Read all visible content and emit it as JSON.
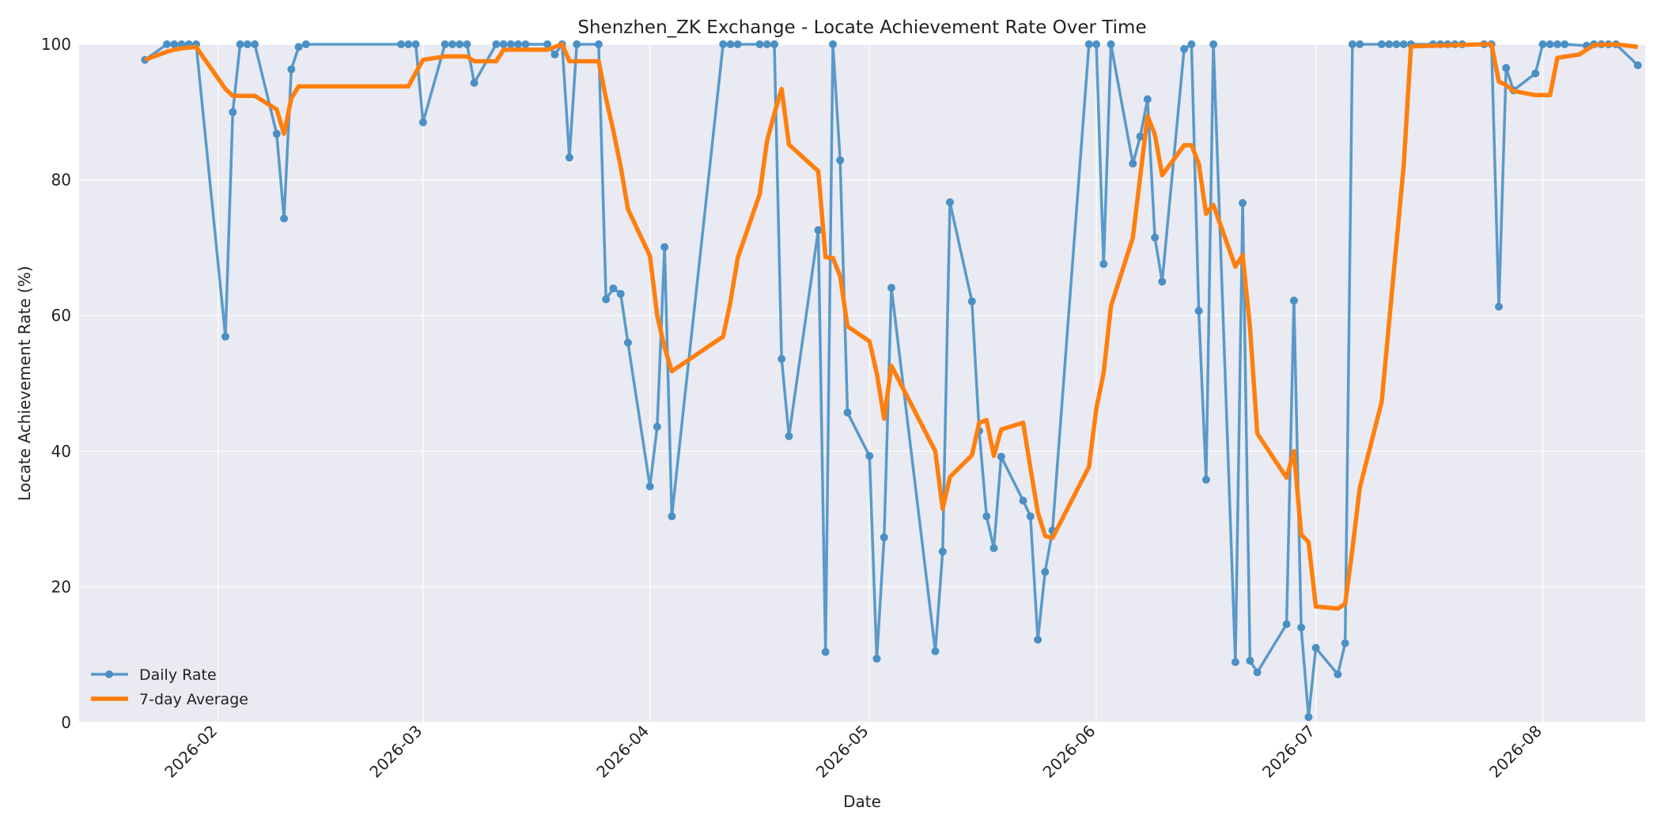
{
  "chart_data": {
    "type": "line",
    "title": "Shenzhen_ZK Exchange - Locate Achievement Rate Over Time",
    "xlabel": "Date",
    "ylabel": "Locate Achievement Rate (%)",
    "xlim": [
      "2026-01-13",
      "2026-08-15"
    ],
    "ylim": [
      0,
      100
    ],
    "x_ticks": [
      "2026-02-01",
      "2026-03-01",
      "2026-04-01",
      "2026-05-01",
      "2026-06-01",
      "2026-07-01",
      "2026-08-01"
    ],
    "x_tick_labels": [
      "2026-02",
      "2026-03",
      "2026-04",
      "2026-05",
      "2026-06",
      "2026-07",
      "2026-08"
    ],
    "y_ticks": [
      0,
      20,
      40,
      60,
      80,
      100
    ],
    "y_tick_labels": [
      "0",
      "20",
      "40",
      "60",
      "80",
      "100"
    ],
    "grid": true,
    "legend_position": "lower-left",
    "colors": {
      "daily": "#4a90c4",
      "avg": "#ff7f0e",
      "plot_bg": "#eaeaf2"
    },
    "series": [
      {
        "name": "Daily Rate",
        "style": "line-markers",
        "points": [
          [
            "2026-01-22",
            97.7
          ],
          [
            "2026-01-25",
            100
          ],
          [
            "2026-01-26",
            100
          ],
          [
            "2026-01-27",
            100
          ],
          [
            "2026-01-28",
            100
          ],
          [
            "2026-01-29",
            100
          ],
          [
            "2026-02-02",
            56.9
          ],
          [
            "2026-02-03",
            90
          ],
          [
            "2026-02-04",
            100
          ],
          [
            "2026-02-05",
            100
          ],
          [
            "2026-02-06",
            100
          ],
          [
            "2026-02-09",
            86.8
          ],
          [
            "2026-02-10",
            74.3
          ],
          [
            "2026-02-11",
            96.3
          ],
          [
            "2026-02-12",
            99.6
          ],
          [
            "2026-02-13",
            100
          ],
          [
            "2026-02-26",
            100
          ],
          [
            "2026-02-27",
            100
          ],
          [
            "2026-02-28",
            100
          ],
          [
            "2026-03-01",
            88.5
          ],
          [
            "2026-03-04",
            100
          ],
          [
            "2026-03-05",
            100
          ],
          [
            "2026-03-06",
            100
          ],
          [
            "2026-03-07",
            100
          ],
          [
            "2026-03-08",
            94.3
          ],
          [
            "2026-03-11",
            100
          ],
          [
            "2026-03-12",
            100
          ],
          [
            "2026-03-13",
            100
          ],
          [
            "2026-03-14",
            100
          ],
          [
            "2026-03-15",
            100
          ],
          [
            "2026-03-18",
            100
          ],
          [
            "2026-03-19",
            98.5
          ],
          [
            "2026-03-20",
            100
          ],
          [
            "2026-03-21",
            83.3
          ],
          [
            "2026-03-22",
            100
          ],
          [
            "2026-03-25",
            100
          ],
          [
            "2026-03-26",
            62.4
          ],
          [
            "2026-03-27",
            64
          ],
          [
            "2026-03-28",
            63.2
          ],
          [
            "2026-03-29",
            56
          ],
          [
            "2026-04-01",
            34.8
          ],
          [
            "2026-04-02",
            43.6
          ],
          [
            "2026-04-03",
            70.1
          ],
          [
            "2026-04-04",
            30.4
          ],
          [
            "2026-04-11",
            100
          ],
          [
            "2026-04-12",
            100
          ],
          [
            "2026-04-13",
            100
          ],
          [
            "2026-04-16",
            100
          ],
          [
            "2026-04-17",
            100
          ],
          [
            "2026-04-18",
            100
          ],
          [
            "2026-04-19",
            53.6
          ],
          [
            "2026-04-20",
            42.2
          ],
          [
            "2026-04-24",
            72.6
          ],
          [
            "2026-04-25",
            10.4
          ],
          [
            "2026-04-26",
            100
          ],
          [
            "2026-04-27",
            82.9
          ],
          [
            "2026-04-28",
            45.7
          ],
          [
            "2026-05-01",
            39.3
          ],
          [
            "2026-05-02",
            9.4
          ],
          [
            "2026-05-03",
            27.3
          ],
          [
            "2026-05-04",
            64.1
          ],
          [
            "2026-05-10",
            10.5
          ],
          [
            "2026-05-11",
            25.2
          ],
          [
            "2026-05-12",
            76.7
          ],
          [
            "2026-05-15",
            62.1
          ],
          [
            "2026-05-16",
            43
          ],
          [
            "2026-05-17",
            30.4
          ],
          [
            "2026-05-18",
            25.7
          ],
          [
            "2026-05-19",
            39.2
          ],
          [
            "2026-05-22",
            32.7
          ],
          [
            "2026-05-23",
            30.4
          ],
          [
            "2026-05-24",
            12.2
          ],
          [
            "2026-05-25",
            22.2
          ],
          [
            "2026-05-26",
            28.3
          ],
          [
            "2026-05-31",
            100
          ],
          [
            "2026-06-01",
            100
          ],
          [
            "2026-06-02",
            67.6
          ],
          [
            "2026-06-03",
            100
          ],
          [
            "2026-06-06",
            82.4
          ],
          [
            "2026-06-07",
            86.4
          ],
          [
            "2026-06-08",
            91.9
          ],
          [
            "2026-06-09",
            71.5
          ],
          [
            "2026-06-10",
            65
          ],
          [
            "2026-06-13",
            99.3
          ],
          [
            "2026-06-14",
            100
          ],
          [
            "2026-06-15",
            60.7
          ],
          [
            "2026-06-16",
            35.8
          ],
          [
            "2026-06-17",
            100
          ],
          [
            "2026-06-20",
            8.9
          ],
          [
            "2026-06-21",
            76.6
          ],
          [
            "2026-06-22",
            9.1
          ],
          [
            "2026-06-23",
            7.4
          ],
          [
            "2026-06-27",
            14.5
          ],
          [
            "2026-06-28",
            62.2
          ],
          [
            "2026-06-29",
            14
          ],
          [
            "2026-06-30",
            0.8
          ],
          [
            "2026-07-01",
            11
          ],
          [
            "2026-07-04",
            7.1
          ],
          [
            "2026-07-05",
            11.7
          ],
          [
            "2026-07-06",
            100
          ],
          [
            "2026-07-07",
            100
          ],
          [
            "2026-07-10",
            100
          ],
          [
            "2026-07-11",
            100
          ],
          [
            "2026-07-12",
            100
          ],
          [
            "2026-07-13",
            100
          ],
          [
            "2026-07-14",
            100
          ],
          [
            "2026-07-17",
            100
          ],
          [
            "2026-07-18",
            100
          ],
          [
            "2026-07-19",
            100
          ],
          [
            "2026-07-20",
            100
          ],
          [
            "2026-07-21",
            100
          ],
          [
            "2026-07-24",
            100
          ],
          [
            "2026-07-25",
            100
          ],
          [
            "2026-07-26",
            61.3
          ],
          [
            "2026-07-27",
            96.5
          ],
          [
            "2026-07-28",
            93.2
          ],
          [
            "2026-07-31",
            95.7
          ],
          [
            "2026-08-01",
            100
          ],
          [
            "2026-08-02",
            100
          ],
          [
            "2026-08-03",
            100
          ],
          [
            "2026-08-04",
            100
          ],
          [
            "2026-08-07",
            99.8
          ],
          [
            "2026-08-08",
            100
          ],
          [
            "2026-08-09",
            100
          ],
          [
            "2026-08-10",
            100
          ],
          [
            "2026-08-11",
            100
          ],
          [
            "2026-08-14",
            96.9
          ]
        ]
      },
      {
        "name": "7-day Average",
        "style": "line",
        "points": [
          [
            "2026-01-22",
            97.7
          ],
          [
            "2026-01-25",
            98.9
          ],
          [
            "2026-01-26",
            99.2
          ],
          [
            "2026-01-27",
            99.4
          ],
          [
            "2026-01-28",
            99.5
          ],
          [
            "2026-01-29",
            99.6
          ],
          [
            "2026-02-02",
            93.4
          ],
          [
            "2026-02-03",
            92.4
          ],
          [
            "2026-02-06",
            92.4
          ],
          [
            "2026-02-09",
            90.4
          ],
          [
            "2026-02-10",
            86.8
          ],
          [
            "2026-02-11",
            92
          ],
          [
            "2026-02-12",
            93.8
          ],
          [
            "2026-02-13",
            93.8
          ],
          [
            "2026-02-26",
            93.8
          ],
          [
            "2026-02-27",
            93.8
          ],
          [
            "2026-02-28",
            95.8
          ],
          [
            "2026-03-01",
            97.7
          ],
          [
            "2026-03-04",
            98.2
          ],
          [
            "2026-03-07",
            98.2
          ],
          [
            "2026-03-08",
            97.5
          ],
          [
            "2026-03-11",
            97.5
          ],
          [
            "2026-03-12",
            99.2
          ],
          [
            "2026-03-18",
            99.2
          ],
          [
            "2026-03-19",
            99.6
          ],
          [
            "2026-03-20",
            100
          ],
          [
            "2026-03-21",
            97.5
          ],
          [
            "2026-03-25",
            97.5
          ],
          [
            "2026-03-26",
            92
          ],
          [
            "2026-03-27",
            87.3
          ],
          [
            "2026-03-28",
            82
          ],
          [
            "2026-03-29",
            75.7
          ],
          [
            "2026-04-01",
            68.8
          ],
          [
            "2026-04-02",
            60
          ],
          [
            "2026-04-03",
            55.3
          ],
          [
            "2026-04-04",
            51.8
          ],
          [
            "2026-04-11",
            56.9
          ],
          [
            "2026-04-12",
            62
          ],
          [
            "2026-04-13",
            68.5
          ],
          [
            "2026-04-16",
            77.9
          ],
          [
            "2026-04-17",
            85.7
          ],
          [
            "2026-04-18",
            89.8
          ],
          [
            "2026-04-19",
            93.4
          ],
          [
            "2026-04-20",
            85.2
          ],
          [
            "2026-04-24",
            81.3
          ],
          [
            "2026-04-25",
            68.6
          ],
          [
            "2026-04-26",
            68.5
          ],
          [
            "2026-04-27",
            65.8
          ],
          [
            "2026-04-28",
            58.4
          ],
          [
            "2026-05-01",
            56.2
          ],
          [
            "2026-05-02",
            51.5
          ],
          [
            "2026-05-03",
            44.8
          ],
          [
            "2026-05-04",
            52.6
          ],
          [
            "2026-05-10",
            40
          ],
          [
            "2026-05-11",
            31.5
          ],
          [
            "2026-05-12",
            36.2
          ],
          [
            "2026-05-15",
            39.4
          ],
          [
            "2026-05-16",
            44.2
          ],
          [
            "2026-05-17",
            44.6
          ],
          [
            "2026-05-18",
            39.3
          ],
          [
            "2026-05-19",
            43.2
          ],
          [
            "2026-05-22",
            44.2
          ],
          [
            "2026-05-23",
            37.5
          ],
          [
            "2026-05-24",
            31
          ],
          [
            "2026-05-25",
            27.5
          ],
          [
            "2026-05-26",
            27.2
          ],
          [
            "2026-05-31",
            37.7
          ],
          [
            "2026-06-01",
            46.3
          ],
          [
            "2026-06-02",
            51.5
          ],
          [
            "2026-06-03",
            61.4
          ],
          [
            "2026-06-06",
            71.5
          ],
          [
            "2026-06-07",
            80.5
          ],
          [
            "2026-06-08",
            89.4
          ],
          [
            "2026-06-09",
            86.7
          ],
          [
            "2026-06-10",
            80.7
          ],
          [
            "2026-06-13",
            85.1
          ],
          [
            "2026-06-14",
            85.1
          ],
          [
            "2026-06-15",
            82.4
          ],
          [
            "2026-06-16",
            75
          ],
          [
            "2026-06-17",
            76.3
          ],
          [
            "2026-06-20",
            67.2
          ],
          [
            "2026-06-21",
            68.9
          ],
          [
            "2026-06-22",
            58.2
          ],
          [
            "2026-06-23",
            42.6
          ],
          [
            "2026-06-27",
            36.1
          ],
          [
            "2026-06-28",
            40
          ],
          [
            "2026-06-29",
            27.7
          ],
          [
            "2026-06-30",
            26.6
          ],
          [
            "2026-07-01",
            17.1
          ],
          [
            "2026-07-04",
            16.8
          ],
          [
            "2026-07-05",
            17.5
          ],
          [
            "2026-07-06",
            25.6
          ],
          [
            "2026-07-07",
            34.6
          ],
          [
            "2026-07-10",
            47.3
          ],
          [
            "2026-07-13",
            82.1
          ],
          [
            "2026-07-14",
            99.7
          ],
          [
            "2026-07-24",
            100
          ],
          [
            "2026-07-25",
            100
          ],
          [
            "2026-07-26",
            94.5
          ],
          [
            "2026-07-27",
            94
          ],
          [
            "2026-07-28",
            93.1
          ],
          [
            "2026-07-31",
            92.5
          ],
          [
            "2026-08-02",
            92.5
          ],
          [
            "2026-08-03",
            98
          ],
          [
            "2026-08-06",
            98.5
          ],
          [
            "2026-08-07",
            99.2
          ],
          [
            "2026-08-08",
            99.9
          ],
          [
            "2026-08-11",
            100
          ],
          [
            "2026-08-14",
            99.6
          ]
        ]
      }
    ]
  }
}
